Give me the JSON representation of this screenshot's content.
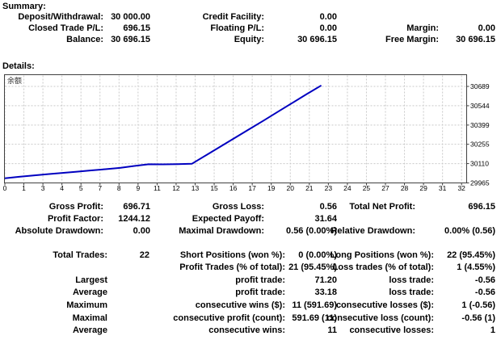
{
  "summary": {
    "heading": "Summary:",
    "rows": [
      {
        "l1": "Deposit/Withdrawal:",
        "v1": "30 000.00",
        "l2": "Credit Facility:",
        "v2": "0.00",
        "l3": "",
        "v3": ""
      },
      {
        "l1": "Closed Trade P/L:",
        "v1": "696.15",
        "l2": "Floating P/L:",
        "v2": "0.00",
        "l3": "Margin:",
        "v3": "0.00"
      },
      {
        "l1": "Balance:",
        "v1": "30 696.15",
        "l2": "Equity:",
        "v2": "30 696.15",
        "l3": "Free Margin:",
        "v3": "30 696.15"
      }
    ]
  },
  "details": {
    "heading": "Details:",
    "stats": [
      {
        "l1": "Gross Profit:",
        "v1": "696.71",
        "l2": "Gross Loss:",
        "v2": "0.56",
        "l3": "Total Net Profit:",
        "v3": "696.15"
      },
      {
        "l1": "Profit Factor:",
        "v1": "1244.12",
        "l2": "Expected Payoff:",
        "v2": "31.64",
        "l3": "",
        "v3": ""
      },
      {
        "l1": "Absolute Drawdown:",
        "v1": "0.00",
        "l2": "Maximal Drawdown:",
        "v2": "0.56 (0.00%)",
        "l3": "Relative Drawdown:",
        "v3": "0.00% (0.56)"
      }
    ],
    "trades": [
      {
        "l1": "Total Trades:",
        "v1": "22",
        "l2": "Short Positions (won %):",
        "v2": "0 (0.00%)",
        "l3": "Long Positions (won %):",
        "v3": "22 (95.45%)"
      },
      {
        "l1": "",
        "v1": "",
        "l2": "Profit Trades (% of total):",
        "v2": "21 (95.45%)",
        "l3": "Loss trades (% of total):",
        "v3": "1 (4.55%)"
      },
      {
        "l1": "Largest",
        "v1": "",
        "l2": "profit trade:",
        "v2": "71.20",
        "l3": "loss trade:",
        "v3": "-0.56"
      },
      {
        "l1": "Average",
        "v1": "",
        "l2": "profit trade:",
        "v2": "33.18",
        "l3": "loss trade:",
        "v3": "-0.56"
      },
      {
        "l1": "Maximum",
        "v1": "",
        "l2": "consecutive wins ($):",
        "v2": "11 (591.69)",
        "l3": "consecutive losses ($):",
        "v3": "1 (-0.56)"
      },
      {
        "l1": "Maximal",
        "v1": "",
        "l2": "consecutive profit (count):",
        "v2": "591.69 (11)",
        "l3": "consecutive loss (count):",
        "v3": "-0.56 (1)"
      },
      {
        "l1": "Average",
        "v1": "",
        "l2": "consecutive wins:",
        "v2": "11",
        "l3": "consecutive losses:",
        "v3": "1"
      }
    ]
  },
  "chart_data": {
    "type": "line",
    "title": "余额",
    "legend_position": "top-left-inside",
    "grid": "dashed",
    "line_color": "#0000c0",
    "grid_color": "#c9c9c9",
    "border_color": "#404040",
    "xlabel": "",
    "ylabel": "",
    "ylim": [
      29965,
      30689
    ],
    "y_ticks": [
      30689,
      30544,
      30399,
      30255,
      30110,
      29965
    ],
    "x_tick_labels": [
      "0",
      "1",
      "3",
      "4",
      "5",
      "7",
      "8",
      "9",
      "11",
      "12",
      "13",
      "15",
      "16",
      "17",
      "19",
      "20",
      "21",
      "23",
      "24",
      "25",
      "27",
      "28",
      "29",
      "31",
      "32"
    ],
    "series": [
      {
        "name": "余额",
        "x": [
          0,
          1,
          2,
          3,
          4,
          5,
          6,
          7,
          8,
          9,
          10,
          11,
          12,
          13,
          14,
          15,
          16,
          17,
          18,
          19,
          20,
          21,
          22
        ],
        "y": [
          30000.0,
          30011.0,
          30021.5,
          30031.0,
          30040.0,
          30049.5,
          30059.0,
          30068.0,
          30077.5,
          30092.0,
          30105.02,
          30104.46,
          30106.0,
          30108.5,
          30173.5,
          30238.5,
          30303.5,
          30368.5,
          30433.5,
          30500.0,
          30566.0,
          30632.0,
          30696.15
        ]
      }
    ]
  }
}
